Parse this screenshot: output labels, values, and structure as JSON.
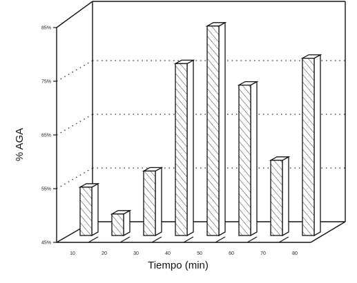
{
  "chart_data": {
    "type": "bar",
    "categories": [
      "10",
      "20",
      "30",
      "40",
      "50",
      "60",
      "70",
      "80"
    ],
    "values": [
      54,
      49,
      57,
      77,
      84,
      73,
      59,
      78
    ],
    "xlabel": "Tiempo (min)",
    "ylabel": "% AGA",
    "ylim": [
      45,
      85
    ],
    "yticks": [
      "45%",
      "55%",
      "65%",
      "75%",
      "85%"
    ],
    "grid": true,
    "style": "3d-bar-hatched"
  }
}
